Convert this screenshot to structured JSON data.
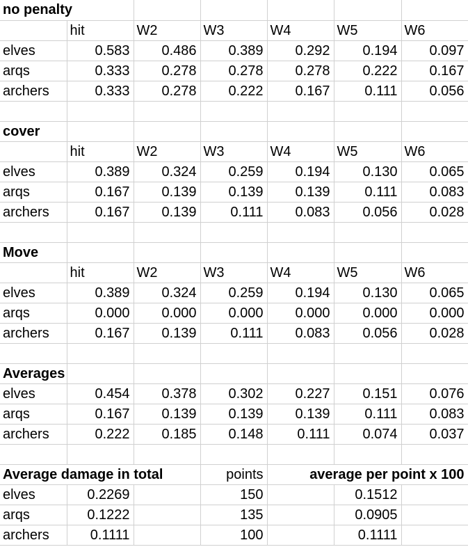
{
  "colors": {
    "background": "#ffffff",
    "gridline": "#d0d0d0",
    "text": "#000000"
  },
  "sections": [
    {
      "title": "no penalty",
      "headers": [
        "hit",
        "W2",
        "W3",
        "W4",
        "W5",
        "W6"
      ],
      "rows": [
        {
          "label": "elves",
          "values": [
            "0.583",
            "0.486",
            "0.389",
            "0.292",
            "0.194",
            "0.097"
          ]
        },
        {
          "label": "arqs",
          "values": [
            "0.333",
            "0.278",
            "0.278",
            "0.278",
            "0.222",
            "0.167"
          ]
        },
        {
          "label": "archers",
          "values": [
            "0.333",
            "0.278",
            "0.222",
            "0.167",
            "0.111",
            "0.056"
          ]
        }
      ]
    },
    {
      "title": "cover",
      "headers": [
        "hit",
        "W2",
        "W3",
        "W4",
        "W5",
        "W6"
      ],
      "rows": [
        {
          "label": "elves",
          "values": [
            "0.389",
            "0.324",
            "0.259",
            "0.194",
            "0.130",
            "0.065"
          ]
        },
        {
          "label": "arqs",
          "values": [
            "0.167",
            "0.139",
            "0.139",
            "0.139",
            "0.111",
            "0.083"
          ]
        },
        {
          "label": "archers",
          "values": [
            "0.167",
            "0.139",
            "0.111",
            "0.083",
            "0.056",
            "0.028"
          ]
        }
      ]
    },
    {
      "title": "Move",
      "headers": [
        "hit",
        "W2",
        "W3",
        "W4",
        "W5",
        "W6"
      ],
      "rows": [
        {
          "label": "elves",
          "values": [
            "0.389",
            "0.324",
            "0.259",
            "0.194",
            "0.130",
            "0.065"
          ]
        },
        {
          "label": "arqs",
          "values": [
            "0.000",
            "0.000",
            "0.000",
            "0.000",
            "0.000",
            "0.000"
          ]
        },
        {
          "label": "archers",
          "values": [
            "0.167",
            "0.139",
            "0.111",
            "0.083",
            "0.056",
            "0.028"
          ]
        }
      ]
    },
    {
      "title": "Averages",
      "headers": null,
      "rows": [
        {
          "label": "elves",
          "values": [
            "0.454",
            "0.378",
            "0.302",
            "0.227",
            "0.151",
            "0.076"
          ]
        },
        {
          "label": "arqs",
          "values": [
            "0.167",
            "0.139",
            "0.139",
            "0.139",
            "0.111",
            "0.083"
          ]
        },
        {
          "label": "archers",
          "values": [
            "0.222",
            "0.185",
            "0.148",
            "0.111",
            "0.074",
            "0.037"
          ]
        }
      ]
    }
  ],
  "summary": {
    "title": "Average damage in total",
    "points_label": "points",
    "avg_label": "average per point x 100",
    "rows": [
      {
        "label": "elves",
        "total": "0.2269",
        "points": "150",
        "avg_per_point": "0.1512"
      },
      {
        "label": "arqs",
        "total": "0.1222",
        "points": "135",
        "avg_per_point": "0.0905"
      },
      {
        "label": "archers",
        "total": "0.1111",
        "points": "100",
        "avg_per_point": "0.1111"
      }
    ]
  }
}
